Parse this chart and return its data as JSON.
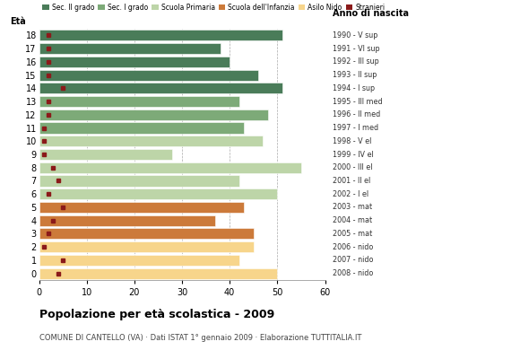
{
  "ages": [
    18,
    17,
    16,
    15,
    14,
    13,
    12,
    11,
    10,
    9,
    8,
    7,
    6,
    5,
    4,
    3,
    2,
    1,
    0
  ],
  "values": [
    51,
    38,
    40,
    46,
    51,
    42,
    48,
    43,
    47,
    28,
    55,
    42,
    50,
    43,
    37,
    45,
    45,
    42,
    50
  ],
  "categories": {
    "sec2": [
      18,
      17,
      16,
      15,
      14
    ],
    "sec1": [
      13,
      12,
      11
    ],
    "primaria": [
      10,
      9,
      8,
      7,
      6
    ],
    "infanzia": [
      5,
      4,
      3
    ],
    "nido": [
      2,
      1,
      0
    ]
  },
  "colors": {
    "sec2": "#4a7c59",
    "sec1": "#7daa78",
    "primaria": "#bdd5a8",
    "infanzia": "#cc7a3a",
    "nido": "#f7d58b",
    "stranieri": "#8b1a1a"
  },
  "stranieri_positions": {
    "18": 2,
    "17": 2,
    "16": 2,
    "15": 2,
    "14": 5,
    "13": 2,
    "12": 2,
    "11": 1,
    "10": 1,
    "9": 1,
    "8": 3,
    "7": 4,
    "6": 2,
    "5": 5,
    "4": 3,
    "3": 2,
    "2": 1,
    "1": 5,
    "0": 4
  },
  "anno_nascita": [
    "1990 - V sup",
    "1991 - VI sup",
    "1992 - III sup",
    "1993 - II sup",
    "1994 - I sup",
    "1995 - III med",
    "1996 - II med",
    "1997 - I med",
    "1998 - V el",
    "1999 - IV el",
    "2000 - III el",
    "2001 - II el",
    "2002 - I el",
    "2003 - mat",
    "2004 - mat",
    "2005 - mat",
    "2006 - nido",
    "2007 - nido",
    "2008 - nido"
  ],
  "title": "Popolazione per età scolastica - 2009",
  "subtitle": "COMUNE DI CANTELLO (VA) · Dati ISTAT 1° gennaio 2009 · Elaborazione TUTTITALIA.IT",
  "legend_labels": [
    "Sec. II grado",
    "Sec. I grado",
    "Scuola Primaria",
    "Scuola dell'Infanzia",
    "Asilo Nido",
    "Stranieri"
  ],
  "xlim": [
    0,
    60
  ],
  "xticks": [
    0,
    10,
    20,
    30,
    40,
    50,
    60
  ],
  "bar_height": 0.82
}
